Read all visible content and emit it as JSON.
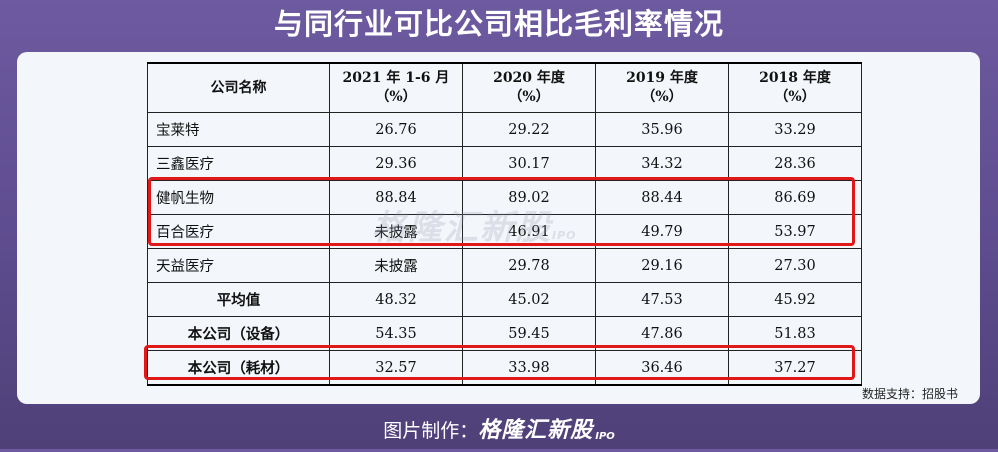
{
  "title": "与同行业可比公司相比毛利率情况",
  "table": {
    "headers": [
      {
        "line1": "公司名称",
        "line2": ""
      },
      {
        "line1": "2021 年 1-6 月",
        "line2": "（%）"
      },
      {
        "line1": "2020 年度",
        "line2": "（%）"
      },
      {
        "line1": "2019 年度",
        "line2": "（%）"
      },
      {
        "line1": "2018 年度",
        "line2": "（%）"
      }
    ],
    "rows": [
      {
        "name": "宝莱特",
        "v2021h1": "26.76",
        "v2020": "29.22",
        "v2019": "35.96",
        "v2018": "33.29"
      },
      {
        "name": "三鑫医疗",
        "v2021h1": "29.36",
        "v2020": "30.17",
        "v2019": "34.32",
        "v2018": "28.36"
      },
      {
        "name": "健帆生物",
        "v2021h1": "88.84",
        "v2020": "89.02",
        "v2019": "88.44",
        "v2018": "86.69"
      },
      {
        "name": "百合医疗",
        "v2021h1": "未披露",
        "v2020": "46.91",
        "v2019": "49.79",
        "v2018": "53.97"
      },
      {
        "name": "天益医疗",
        "v2021h1": "未披露",
        "v2020": "29.78",
        "v2019": "29.16",
        "v2018": "27.30"
      },
      {
        "name": "平均值",
        "v2021h1": "48.32",
        "v2020": "45.02",
        "v2019": "47.53",
        "v2018": "45.92"
      },
      {
        "name": "本公司（设备）",
        "v2021h1": "54.35",
        "v2020": "59.45",
        "v2019": "47.86",
        "v2018": "51.83"
      },
      {
        "name": "本公司（耗材）",
        "v2021h1": "32.57",
        "v2020": "33.98",
        "v2019": "36.46",
        "v2018": "37.27"
      }
    ]
  },
  "watermark": {
    "brand": "格隆汇新股",
    "suffix": "IPO"
  },
  "source": "数据支持：招股书",
  "footer": {
    "prefix": "图片制作：",
    "brand": "格隆汇新股",
    "suffix": "IPO"
  },
  "colors": {
    "highlight": "#e01818",
    "background": "#6d5aa0",
    "panel": "#f3f7fb"
  }
}
